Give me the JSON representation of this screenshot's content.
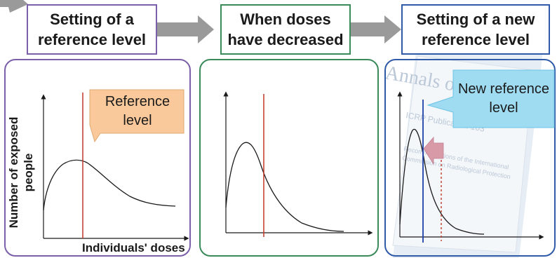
{
  "steps": [
    {
      "line1": "Setting of a",
      "line2": "reference level",
      "color": "#7b5fa8"
    },
    {
      "line1": "When doses",
      "line2": "have decreased",
      "color": "#3a8a5a"
    },
    {
      "line1": "Setting of a new",
      "line2": "reference level",
      "color": "#2f5aa8"
    }
  ],
  "callouts": {
    "reference_level": {
      "line1": "Reference",
      "line2": "level",
      "fill": "#f9c99b"
    },
    "new_reference_level": {
      "line1": "New reference",
      "line2": "level",
      "fill": "#9fdcf2"
    }
  },
  "axes": {
    "ylabel_line1": "Number of exposed",
    "ylabel_line2": "people",
    "xlabel": "Individuals' doses"
  },
  "background_doc": {
    "title": "Annals of the ICRP",
    "publication": "ICRP Publication 103",
    "subtitle_line1": "Recommendations of the International",
    "subtitle_line2": "Commission on Radiological Protection"
  },
  "colors": {
    "arrow": "#9a9a9a",
    "curve": "#1a1a1a",
    "ref_line": "#c0392b",
    "new_ref_line": "#1f3fa8",
    "shift_arrow": "#d99aa8"
  }
}
